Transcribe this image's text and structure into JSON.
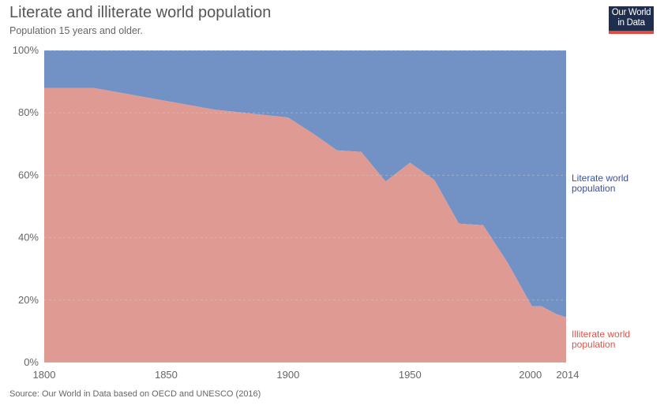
{
  "header": {
    "title": "Literate and illiterate world population",
    "subtitle": "Population 15 years and older."
  },
  "logo": {
    "line1": "Our World",
    "line2": "in Data"
  },
  "footer": {
    "source": "Source: Our World in Data based on OECD and UNESCO (2016)"
  },
  "colors": {
    "literate": "#7292c6",
    "illiterate": "#df9a93",
    "literate_label": "#3b4f9c",
    "illiterate_label": "#d9564c"
  },
  "chart_data": {
    "type": "area",
    "stacked": true,
    "title": "Literate and illiterate world population",
    "subtitle": "Population 15 years and older.",
    "xlabel": "",
    "ylabel": "",
    "xlim": [
      1800,
      2014
    ],
    "ylim": [
      0,
      100
    ],
    "x_ticks": [
      "1800",
      "1850",
      "1900",
      "1950",
      "2000",
      "2014"
    ],
    "y_ticks": [
      "0%",
      "20%",
      "40%",
      "60%",
      "80%",
      "100%"
    ],
    "x": [
      1800,
      1820,
      1870,
      1900,
      1910,
      1920,
      1930,
      1940,
      1950,
      1960,
      1970,
      1980,
      1990,
      2000,
      2004,
      2010,
      2014
    ],
    "series": [
      {
        "name": "Illiterate world population",
        "label_lines": [
          "Illiterate world",
          "population"
        ],
        "values": [
          88,
          88,
          81,
          78.5,
          73.5,
          68,
          67.5,
          58,
          64,
          58.5,
          44.5,
          44,
          32,
          18,
          18,
          15.5,
          14.5
        ]
      },
      {
        "name": "Literate world population",
        "label_lines": [
          "Literate world",
          "population"
        ],
        "values": [
          12,
          12,
          19,
          21.5,
          26.5,
          32,
          32.5,
          42,
          36,
          41.5,
          55.5,
          56,
          68,
          82,
          82,
          84.5,
          85.5
        ]
      }
    ],
    "legend": "right"
  }
}
